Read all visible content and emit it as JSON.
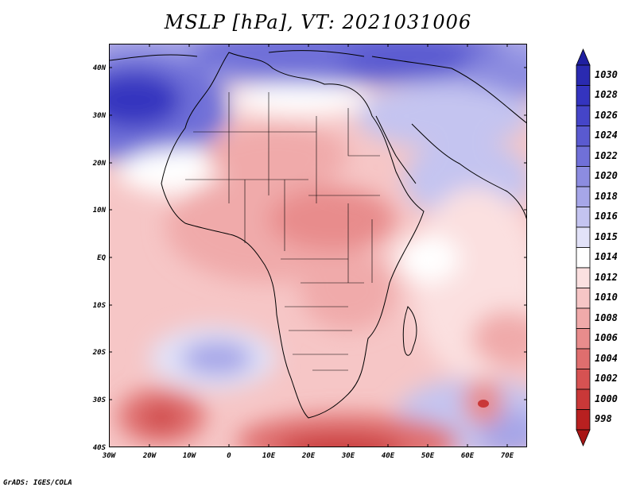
{
  "title": "MSLP [hPa], VT: 2021031006",
  "footer": "GrADS: IGES/COLA",
  "lat_labels": [
    "40N",
    "30N",
    "20N",
    "10N",
    "EQ",
    "10S",
    "20S",
    "30S",
    "40S"
  ],
  "lon_labels": [
    "30W",
    "20W",
    "10W",
    "0",
    "10E",
    "20E",
    "30E",
    "40E",
    "50E",
    "60E",
    "70E"
  ],
  "colorbar": {
    "levels": [
      "1030",
      "1028",
      "1026",
      "1024",
      "1022",
      "1020",
      "1018",
      "1016",
      "1015",
      "1014",
      "1012",
      "1010",
      "1008",
      "1006",
      "1004",
      "1002",
      "1000",
      "998"
    ],
    "colors": [
      "#2a2ab0",
      "#3434bf",
      "#4545c8",
      "#5a5ad0",
      "#7070d8",
      "#8c8ce0",
      "#a6a6e8",
      "#c4c4f0",
      "#e2e2f8",
      "#ffffff",
      "#fbe0e0",
      "#f6c6c6",
      "#f0aaaa",
      "#e88c8c",
      "#df6e6e",
      "#d65252",
      "#c93838",
      "#b82020"
    ],
    "top_arrow_color": "#1f1fa0",
    "bottom_arrow_color": "#a81515"
  }
}
